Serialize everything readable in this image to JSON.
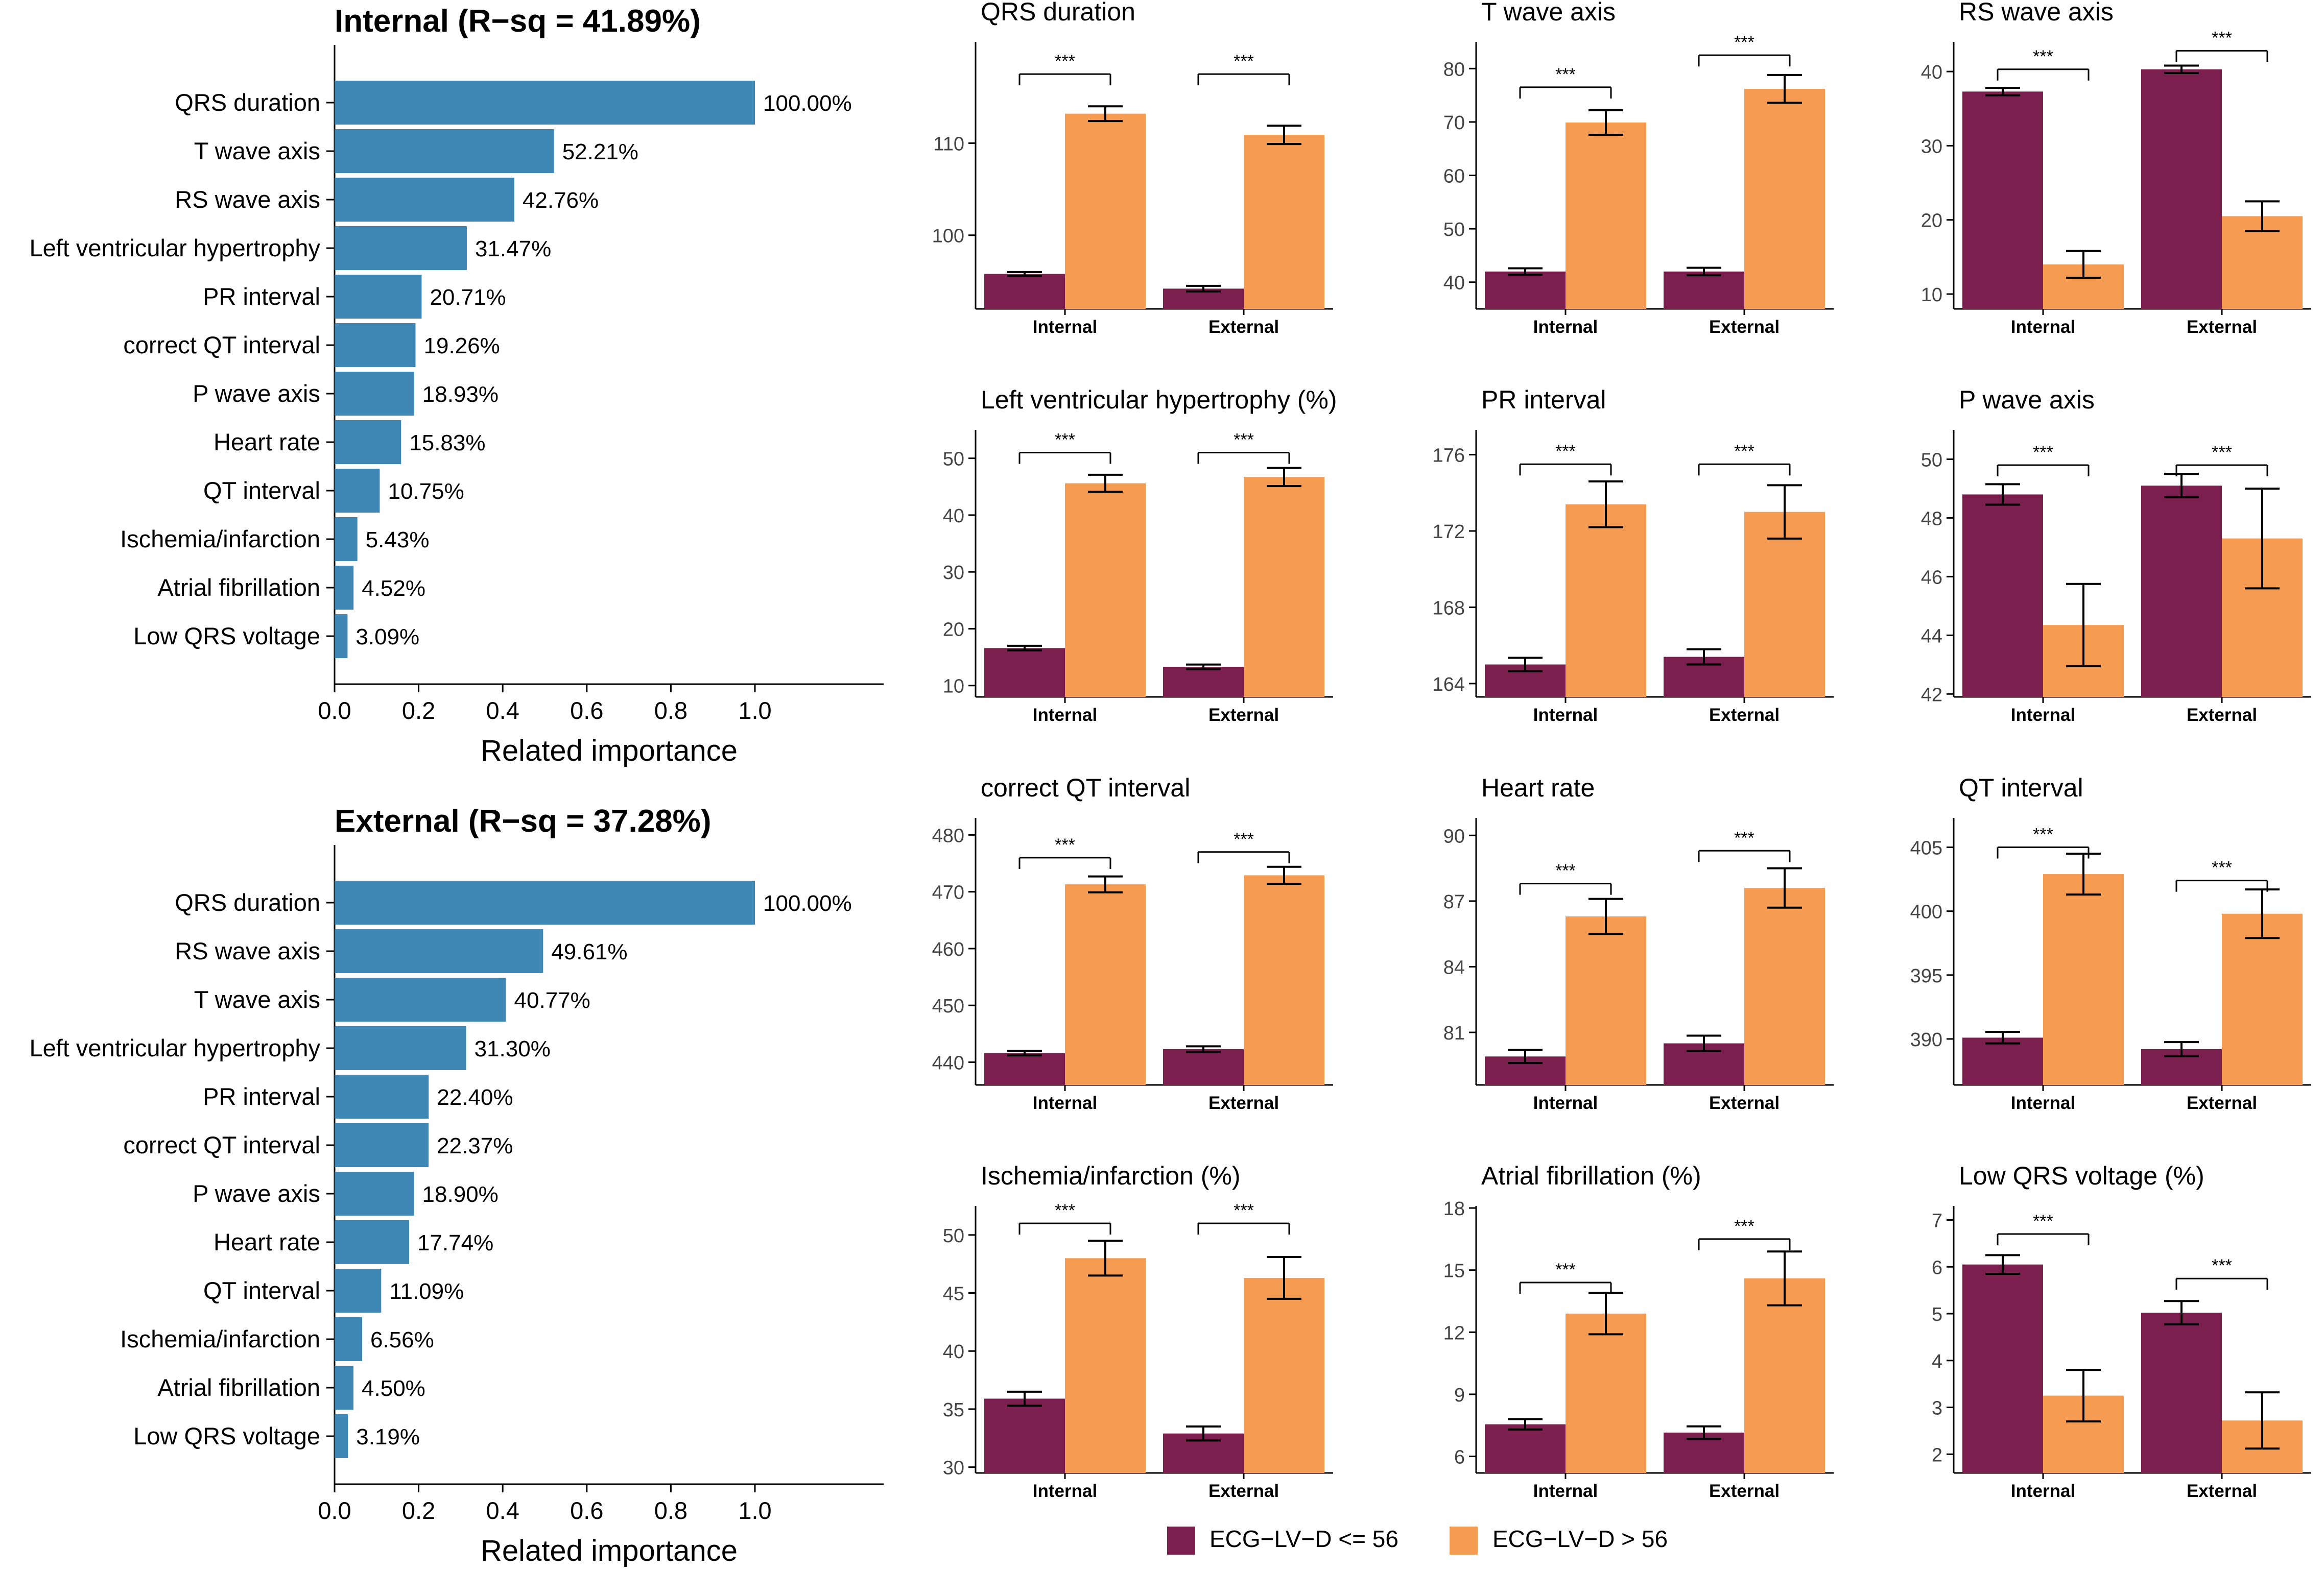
{
  "colors": {
    "importance_bar": "#3f88b5",
    "low_group": "#7a1f4e",
    "high_group": "#f59b52",
    "axis": "#000000",
    "tick_text": "#444444"
  },
  "legend": {
    "low_label": "ECG−LV−D <= 56",
    "high_label": "ECG−LV−D > 56"
  },
  "importance_charts": [
    {
      "title": "Internal (R−sq = 41.89%)",
      "xlabel": "Related importance",
      "xticks": [
        "0.0",
        "0.2",
        "0.4",
        "0.6",
        "0.8",
        "1.0"
      ],
      "categories": [
        "QRS duration",
        "T wave axis",
        "RS wave axis",
        "Left ventricular hypertrophy",
        "PR interval",
        "correct QT interval",
        "P wave axis",
        "Heart rate",
        "QT interval",
        "Ischemia/infarction",
        "Atrial fibrillation",
        "Low QRS voltage"
      ],
      "values": [
        1.0,
        0.5221,
        0.4276,
        0.3147,
        0.2071,
        0.1926,
        0.1893,
        0.1583,
        0.1075,
        0.0543,
        0.0452,
        0.0309
      ],
      "labels": [
        "100.00%",
        "52.21%",
        "42.76%",
        "31.47%",
        "20.71%",
        "19.26%",
        "18.93%",
        "15.83%",
        "10.75%",
        "5.43%",
        "4.52%",
        "3.09%"
      ]
    },
    {
      "title": "External (R−sq = 37.28%)",
      "xlabel": "Related importance",
      "xticks": [
        "0.0",
        "0.2",
        "0.4",
        "0.6",
        "0.8",
        "1.0"
      ],
      "categories": [
        "QRS duration",
        "RS wave axis",
        "T wave axis",
        "Left ventricular hypertrophy",
        "PR interval",
        "correct QT interval",
        "P wave axis",
        "Heart rate",
        "QT interval",
        "Ischemia/infarction",
        "Atrial fibrillation",
        "Low QRS voltage"
      ],
      "values": [
        1.0,
        0.4961,
        0.4077,
        0.313,
        0.224,
        0.2237,
        0.189,
        0.1774,
        0.1109,
        0.0656,
        0.045,
        0.0319
      ],
      "labels": [
        "100.00%",
        "49.61%",
        "40.77%",
        "31.30%",
        "22.40%",
        "22.37%",
        "18.90%",
        "17.74%",
        "11.09%",
        "6.56%",
        "4.50%",
        "3.19%"
      ]
    }
  ],
  "chart_data": [
    {
      "type": "bar",
      "title": "QRS duration",
      "categories": [
        "Internal",
        "External"
      ],
      "ylim": [
        92,
        121
      ],
      "yticks": [
        100,
        110
      ],
      "series": [
        {
          "name": "ECG−LV−D <= 56",
          "values": [
            95.8,
            94.2
          ],
          "err": [
            0.2,
            0.3
          ]
        },
        {
          "name": "ECG−LV−D > 56",
          "values": [
            113.2,
            110.9
          ],
          "err": [
            0.8,
            1.0
          ]
        }
      ],
      "significance": [
        {
          "label": "***",
          "level": 117.5
        },
        {
          "label": "***",
          "level": 117.5
        }
      ]
    },
    {
      "type": "bar",
      "title": "T wave axis",
      "categories": [
        "Internal",
        "External"
      ],
      "ylim": [
        35,
        85
      ],
      "yticks": [
        40,
        50,
        60,
        70,
        80
      ],
      "series": [
        {
          "name": "ECG−LV−D <= 56",
          "values": [
            42.0,
            42.0
          ],
          "err": [
            0.6,
            0.7
          ]
        },
        {
          "name": "ECG−LV−D > 56",
          "values": [
            69.9,
            76.2
          ],
          "err": [
            2.3,
            2.6
          ]
        }
      ],
      "significance": [
        {
          "label": "***",
          "level": 76.5
        },
        {
          "label": "***",
          "level": 82.5
        }
      ]
    },
    {
      "type": "bar",
      "title": "RS wave axis",
      "categories": [
        "Internal",
        "External"
      ],
      "ylim": [
        8,
        44
      ],
      "yticks": [
        10,
        20,
        30,
        40
      ],
      "series": [
        {
          "name": "ECG−LV−D <= 56",
          "values": [
            37.3,
            40.3
          ],
          "err": [
            0.5,
            0.5
          ]
        },
        {
          "name": "ECG−LV−D > 56",
          "values": [
            14.0,
            20.5
          ],
          "err": [
            1.8,
            2.0
          ]
        }
      ],
      "significance": [
        {
          "label": "***",
          "level": 40.3
        },
        {
          "label": "***",
          "level": 42.8
        }
      ]
    },
    {
      "type": "bar",
      "title": "Left ventricular hypertrophy (%)",
      "categories": [
        "Internal",
        "External"
      ],
      "ylim": [
        8,
        55
      ],
      "yticks": [
        10,
        20,
        30,
        40,
        50
      ],
      "series": [
        {
          "name": "ECG−LV−D <= 56",
          "values": [
            16.6,
            13.3
          ],
          "err": [
            0.4,
            0.4
          ]
        },
        {
          "name": "ECG−LV−D > 56",
          "values": [
            45.6,
            46.7
          ],
          "err": [
            1.5,
            1.6
          ]
        }
      ],
      "significance": [
        {
          "label": "***",
          "level": 51.0
        },
        {
          "label": "***",
          "level": 51.0
        }
      ]
    },
    {
      "type": "bar",
      "title": "PR interval",
      "categories": [
        "Internal",
        "External"
      ],
      "ylim": [
        163.3,
        177.3
      ],
      "yticks": [
        164,
        168,
        172,
        176
      ],
      "series": [
        {
          "name": "ECG−LV−D <= 56",
          "values": [
            165.0,
            165.4
          ],
          "err": [
            0.35,
            0.4
          ]
        },
        {
          "name": "ECG−LV−D > 56",
          "values": [
            173.4,
            173.0
          ],
          "err": [
            1.2,
            1.4
          ]
        }
      ],
      "significance": [
        {
          "label": "***",
          "level": 175.5
        },
        {
          "label": "***",
          "level": 175.5
        }
      ]
    },
    {
      "type": "bar",
      "title": "P wave axis",
      "categories": [
        "Internal",
        "External"
      ],
      "ylim": [
        41.9,
        51.0
      ],
      "yticks": [
        42,
        44,
        46,
        48,
        50
      ],
      "series": [
        {
          "name": "ECG−LV−D <= 56",
          "values": [
            48.8,
            49.1
          ],
          "err": [
            0.35,
            0.4
          ]
        },
        {
          "name": "ECG−LV−D > 56",
          "values": [
            44.35,
            47.3
          ],
          "err": [
            1.4,
            1.7
          ]
        }
      ],
      "significance": [
        {
          "label": "***",
          "level": 49.8
        },
        {
          "label": "***",
          "level": 49.8
        }
      ]
    },
    {
      "type": "bar",
      "title": "correct QT interval",
      "categories": [
        "Internal",
        "External"
      ],
      "ylim": [
        436,
        483
      ],
      "yticks": [
        440,
        450,
        460,
        470,
        480
      ],
      "series": [
        {
          "name": "ECG−LV−D <= 56",
          "values": [
            441.6,
            442.3
          ],
          "err": [
            0.4,
            0.5
          ]
        },
        {
          "name": "ECG−LV−D > 56",
          "values": [
            471.3,
            472.9
          ],
          "err": [
            1.4,
            1.5
          ]
        }
      ],
      "significance": [
        {
          "label": "***",
          "level": 476.0
        },
        {
          "label": "***",
          "level": 477.0
        }
      ]
    },
    {
      "type": "bar",
      "title": "Heart rate",
      "categories": [
        "Internal",
        "External"
      ],
      "ylim": [
        78.6,
        90.8
      ],
      "yticks": [
        81,
        84,
        87,
        90
      ],
      "series": [
        {
          "name": "ECG−LV−D <= 56",
          "values": [
            79.9,
            80.5
          ],
          "err": [
            0.3,
            0.35
          ]
        },
        {
          "name": "ECG−LV−D > 56",
          "values": [
            86.3,
            87.6
          ],
          "err": [
            0.8,
            0.9
          ]
        }
      ],
      "significance": [
        {
          "label": "***",
          "level": 87.8
        },
        {
          "label": "***",
          "level": 89.3
        }
      ]
    },
    {
      "type": "bar",
      "title": "QT interval",
      "categories": [
        "Internal",
        "External"
      ],
      "ylim": [
        386.4,
        407.3
      ],
      "yticks": [
        390,
        395,
        400,
        405
      ],
      "series": [
        {
          "name": "ECG−LV−D <= 56",
          "values": [
            390.1,
            389.2
          ],
          "err": [
            0.45,
            0.55
          ]
        },
        {
          "name": "ECG−LV−D > 56",
          "values": [
            402.9,
            399.8
          ],
          "err": [
            1.6,
            1.9
          ]
        }
      ],
      "significance": [
        {
          "label": "***",
          "level": 405.0
        },
        {
          "label": "***",
          "level": 402.4
        }
      ]
    },
    {
      "type": "bar",
      "title": "Ischemia/infarction (%)",
      "categories": [
        "Internal",
        "External"
      ],
      "ylim": [
        29.5,
        52.5
      ],
      "yticks": [
        30,
        35,
        40,
        45,
        50
      ],
      "series": [
        {
          "name": "ECG−LV−D <= 56",
          "values": [
            35.9,
            32.9
          ],
          "err": [
            0.6,
            0.6
          ]
        },
        {
          "name": "ECG−LV−D > 56",
          "values": [
            48.0,
            46.3
          ],
          "err": [
            1.5,
            1.8
          ]
        }
      ],
      "significance": [
        {
          "label": "***",
          "level": 51.0
        },
        {
          "label": "***",
          "level": 51.0
        }
      ]
    },
    {
      "type": "bar",
      "title": "Atrial fibrillation (%)",
      "categories": [
        "Internal",
        "External"
      ],
      "ylim": [
        5.2,
        18.1
      ],
      "yticks": [
        6,
        9,
        12,
        15,
        18
      ],
      "series": [
        {
          "name": "ECG−LV−D <= 56",
          "values": [
            7.55,
            7.15
          ],
          "err": [
            0.25,
            0.3
          ]
        },
        {
          "name": "ECG−LV−D > 56",
          "values": [
            12.9,
            14.6
          ],
          "err": [
            1.0,
            1.3
          ]
        }
      ],
      "significance": [
        {
          "label": "***",
          "level": 14.4
        },
        {
          "label": "***",
          "level": 16.5
        }
      ]
    },
    {
      "type": "bar",
      "title": "Low QRS voltage (%)",
      "categories": [
        "Internal",
        "External"
      ],
      "ylim": [
        1.6,
        7.3
      ],
      "yticks": [
        2,
        3,
        4,
        5,
        6,
        7
      ],
      "series": [
        {
          "name": "ECG−LV−D <= 56",
          "values": [
            6.05,
            5.02
          ],
          "err": [
            0.2,
            0.25
          ]
        },
        {
          "name": "ECG−LV−D > 56",
          "values": [
            3.25,
            2.72
          ],
          "err": [
            0.55,
            0.6
          ]
        }
      ],
      "significance": [
        {
          "label": "***",
          "level": 6.7
        },
        {
          "label": "***",
          "level": 5.75
        }
      ]
    }
  ]
}
